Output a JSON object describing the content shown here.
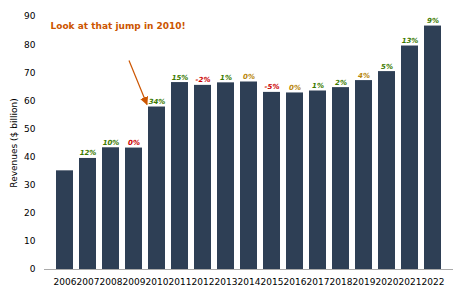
{
  "chart_data": {
    "type": "bar",
    "categories": [
      "2006",
      "2007",
      "2008",
      "2009",
      "2010",
      "2011",
      "2012",
      "2013",
      "2014",
      "2015",
      "2016",
      "2017",
      "2018",
      "2019",
      "2020",
      "2021",
      "2022"
    ],
    "values": [
      35.1,
      39.5,
      43.3,
      43.2,
      57.8,
      66.5,
      65.5,
      66.4,
      66.7,
      63.0,
      62.8,
      63.5,
      64.7,
      67.2,
      70.4,
      79.5,
      86.6
    ],
    "color": "#2e3f55",
    "change_labels": [
      null,
      "12%",
      "10%",
      "0%",
      "34%",
      "15%",
      "-2%",
      "1%",
      "0%",
      "-5%",
      "0%",
      "1%",
      "2%",
      "4%",
      "5%",
      "13%",
      "9%"
    ],
    "change_colors": [
      null,
      "#3c7a00",
      "#3c7a00",
      "#cc0000",
      "#3c7a00",
      "#3c7a00",
      "#cc0000",
      "#3c7a00",
      "#b8860b",
      "#cc0000",
      "#b8860b",
      "#3c7a00",
      "#3c7a00",
      "#b8860b",
      "#3c7a00",
      "#3c7a00",
      "#3c7a00"
    ],
    "ylabel": "Revenues ($ billion)",
    "ylim": [
      0,
      90
    ],
    "yticks": [
      0,
      10,
      20,
      30,
      40,
      50,
      60,
      70,
      80,
      90
    ],
    "grid": false,
    "annotations": [
      {
        "text": "Look at that jump in 2010!",
        "x": "2010",
        "color": "#cc5500"
      }
    ]
  }
}
